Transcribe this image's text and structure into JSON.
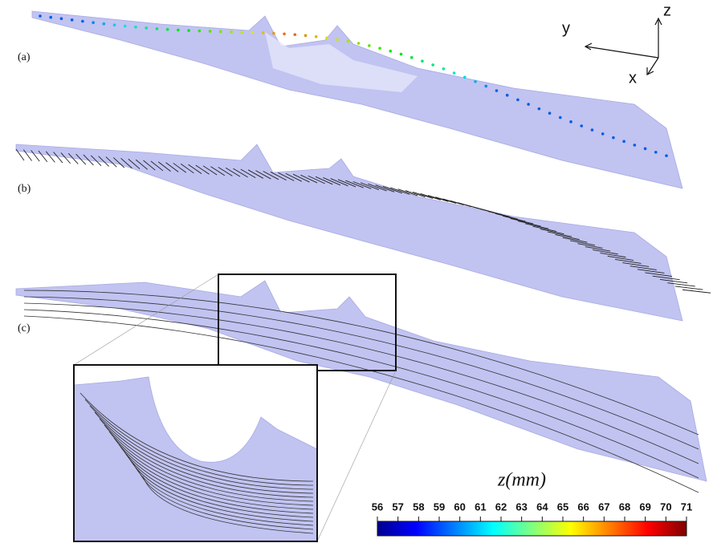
{
  "panels": [
    {
      "label": "(a)"
    },
    {
      "label": "(b)"
    },
    {
      "label": "(c)"
    }
  ],
  "axes_triad": {
    "x": "x",
    "y": "y",
    "z": "z"
  },
  "colorbar": {
    "label": "z(mm)",
    "ticks": [
      56,
      57,
      58,
      59,
      60,
      61,
      62,
      63,
      64,
      65,
      66,
      67,
      68,
      69,
      70,
      71
    ],
    "range": [
      56,
      71
    ]
  }
}
